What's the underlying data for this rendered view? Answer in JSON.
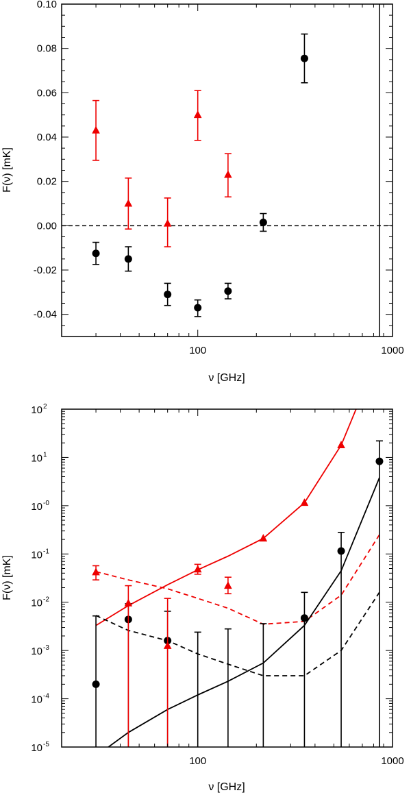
{
  "chart_data": [
    {
      "type": "scatter",
      "xscale": "log",
      "xlim": [
        20,
        1000
      ],
      "ylim": [
        -0.05,
        0.1
      ],
      "xlabel": "ν [GHz]",
      "ylabel": "F(ν) [mK]",
      "xticks": [
        {
          "v": 100,
          "label": "100"
        },
        {
          "v": 1000,
          "label": "1000"
        }
      ],
      "yticks": [
        {
          "v": 0.1,
          "label": "0.10"
        },
        {
          "v": 0.08,
          "label": "0.08"
        },
        {
          "v": 0.06,
          "label": "0.06"
        },
        {
          "v": 0.04,
          "label": "0.04"
        },
        {
          "v": 0.02,
          "label": "0.02"
        },
        {
          "v": 0.0,
          "label": "0.00"
        },
        {
          "v": -0.02,
          "label": "-0.02"
        },
        {
          "v": -0.04,
          "label": "-0.04"
        }
      ],
      "hline": 0,
      "vline": 857,
      "series": [
        {
          "name": "black-circles",
          "color": "#000000",
          "marker": "circle",
          "points": [
            {
              "x": 30,
              "y": -0.0125,
              "lo": -0.0175,
              "hi": -0.0075
            },
            {
              "x": 44,
              "y": -0.015,
              "lo": -0.0205,
              "hi": -0.0095
            },
            {
              "x": 70,
              "y": -0.031,
              "lo": -0.036,
              "hi": -0.026
            },
            {
              "x": 100,
              "y": -0.037,
              "lo": -0.041,
              "hi": -0.0335
            },
            {
              "x": 143,
              "y": -0.0295,
              "lo": -0.033,
              "hi": -0.026
            },
            {
              "x": 217,
              "y": 0.0015,
              "lo": -0.0025,
              "hi": 0.0055
            },
            {
              "x": 353,
              "y": 0.0755,
              "lo": 0.0645,
              "hi": 0.0865
            }
          ]
        },
        {
          "name": "red-triangles",
          "color": "#ee0000",
          "marker": "triangle",
          "points": [
            {
              "x": 30,
              "y": 0.043,
              "lo": 0.0295,
              "hi": 0.0565
            },
            {
              "x": 44,
              "y": 0.01,
              "lo": -0.0015,
              "hi": 0.0215
            },
            {
              "x": 70,
              "y": 0.001,
              "lo": -0.0095,
              "hi": 0.0125
            },
            {
              "x": 100,
              "y": 0.05,
              "lo": 0.0385,
              "hi": 0.061
            },
            {
              "x": 143,
              "y": 0.023,
              "lo": 0.013,
              "hi": 0.0325
            }
          ]
        }
      ]
    },
    {
      "type": "scatter",
      "xscale": "log",
      "yscale": "log",
      "xlim": [
        20,
        1000
      ],
      "ylim": [
        1e-05,
        100
      ],
      "xlabel": "ν [GHz]",
      "ylabel": "F(ν) [mK]",
      "xticks": [
        {
          "v": 100,
          "label": "100"
        },
        {
          "v": 1000,
          "label": "1000"
        }
      ],
      "yticks": [
        {
          "v": 100,
          "base": "10",
          "exp": "2"
        },
        {
          "v": 10,
          "base": "10",
          "exp": "1"
        },
        {
          "v": 1,
          "base": "10",
          "exp": "-0"
        },
        {
          "v": 0.1,
          "base": "10",
          "exp": "-1"
        },
        {
          "v": 0.01,
          "base": "10",
          "exp": "-2"
        },
        {
          "v": 0.001,
          "base": "10",
          "exp": "-3"
        },
        {
          "v": 0.0001,
          "base": "10",
          "exp": "-4"
        },
        {
          "v": 1e-05,
          "base": "10",
          "exp": "-5"
        }
      ],
      "series": [
        {
          "name": "black-circles",
          "color": "#000000",
          "marker": "circle",
          "points": [
            {
              "x": 30,
              "y": 0.0002,
              "lo": 1e-05,
              "hi": 0.0052
            },
            {
              "x": 44,
              "y": 0.0044,
              "lo": 1e-05,
              "hi": 0.0093
            },
            {
              "x": 70,
              "y": 0.0016,
              "lo": 1e-05,
              "hi": 0.0065
            },
            {
              "x": 100,
              "y": null,
              "lo": 1e-05,
              "hi": 0.0024
            },
            {
              "x": 143,
              "y": null,
              "lo": 1e-05,
              "hi": 0.0028
            },
            {
              "x": 217,
              "y": null,
              "lo": 1e-05,
              "hi": 0.0036
            },
            {
              "x": 353,
              "y": 0.0047,
              "lo": 1e-05,
              "hi": 0.016
            },
            {
              "x": 545,
              "y": 0.115,
              "lo": 1e-05,
              "hi": 0.28
            },
            {
              "x": 857,
              "y": 8.3,
              "lo": 1e-05,
              "hi": 22
            }
          ]
        },
        {
          "name": "red-triangles",
          "color": "#ee0000",
          "marker": "triangle",
          "points": [
            {
              "x": 30,
              "y": 0.042,
              "lo": 0.029,
              "hi": 0.057
            },
            {
              "x": 44,
              "y": 0.0095,
              "lo": 1e-05,
              "hi": 0.022
            },
            {
              "x": 70,
              "y": 0.00125,
              "lo": 1e-05,
              "hi": 0.012
            },
            {
              "x": 100,
              "y": 0.048,
              "lo": 0.038,
              "hi": 0.061
            },
            {
              "x": 143,
              "y": 0.022,
              "lo": 0.015,
              "hi": 0.033
            },
            {
              "x": 217,
              "y": 0.21,
              "lo": null,
              "hi": null
            },
            {
              "x": 353,
              "y": 1.15,
              "lo": null,
              "hi": null
            },
            {
              "x": 545,
              "y": 18.0,
              "lo": null,
              "hi": null
            }
          ]
        }
      ],
      "lines": [
        {
          "name": "red-solid-line",
          "color": "#ee0000",
          "dash": false,
          "points": [
            [
              30,
              0.0033
            ],
            [
              44,
              0.0085
            ],
            [
              70,
              0.023
            ],
            [
              100,
              0.047
            ],
            [
              143,
              0.09
            ],
            [
              217,
              0.21
            ],
            [
              353,
              1.15
            ],
            [
              545,
              18
            ],
            [
              650,
              100
            ]
          ]
        },
        {
          "name": "red-dashed-line",
          "color": "#ee0000",
          "dash": true,
          "points": [
            [
              30,
              0.043
            ],
            [
              44,
              0.029
            ],
            [
              70,
              0.019
            ],
            [
              100,
              0.012
            ],
            [
              143,
              0.0075
            ],
            [
              217,
              0.0035
            ],
            [
              353,
              0.004
            ],
            [
              545,
              0.014
            ],
            [
              857,
              0.25
            ]
          ]
        },
        {
          "name": "black-solid-line",
          "color": "#000000",
          "dash": false,
          "points": [
            [
              30,
              6.5e-06
            ],
            [
              44,
              2e-05
            ],
            [
              70,
              6e-05
            ],
            [
              100,
              0.00012
            ],
            [
              143,
              0.00023
            ],
            [
              217,
              0.00055
            ],
            [
              353,
              0.0033
            ],
            [
              545,
              0.045
            ],
            [
              857,
              3.8
            ]
          ]
        },
        {
          "name": "black-dashed-line",
          "color": "#000000",
          "dash": true,
          "points": [
            [
              30,
              0.0053
            ],
            [
              44,
              0.0026
            ],
            [
              70,
              0.0016
            ],
            [
              100,
              0.00085
            ],
            [
              143,
              0.00052
            ],
            [
              217,
              0.0003
            ],
            [
              353,
              0.0003
            ],
            [
              545,
              0.001
            ],
            [
              857,
              0.016
            ]
          ]
        }
      ]
    }
  ]
}
